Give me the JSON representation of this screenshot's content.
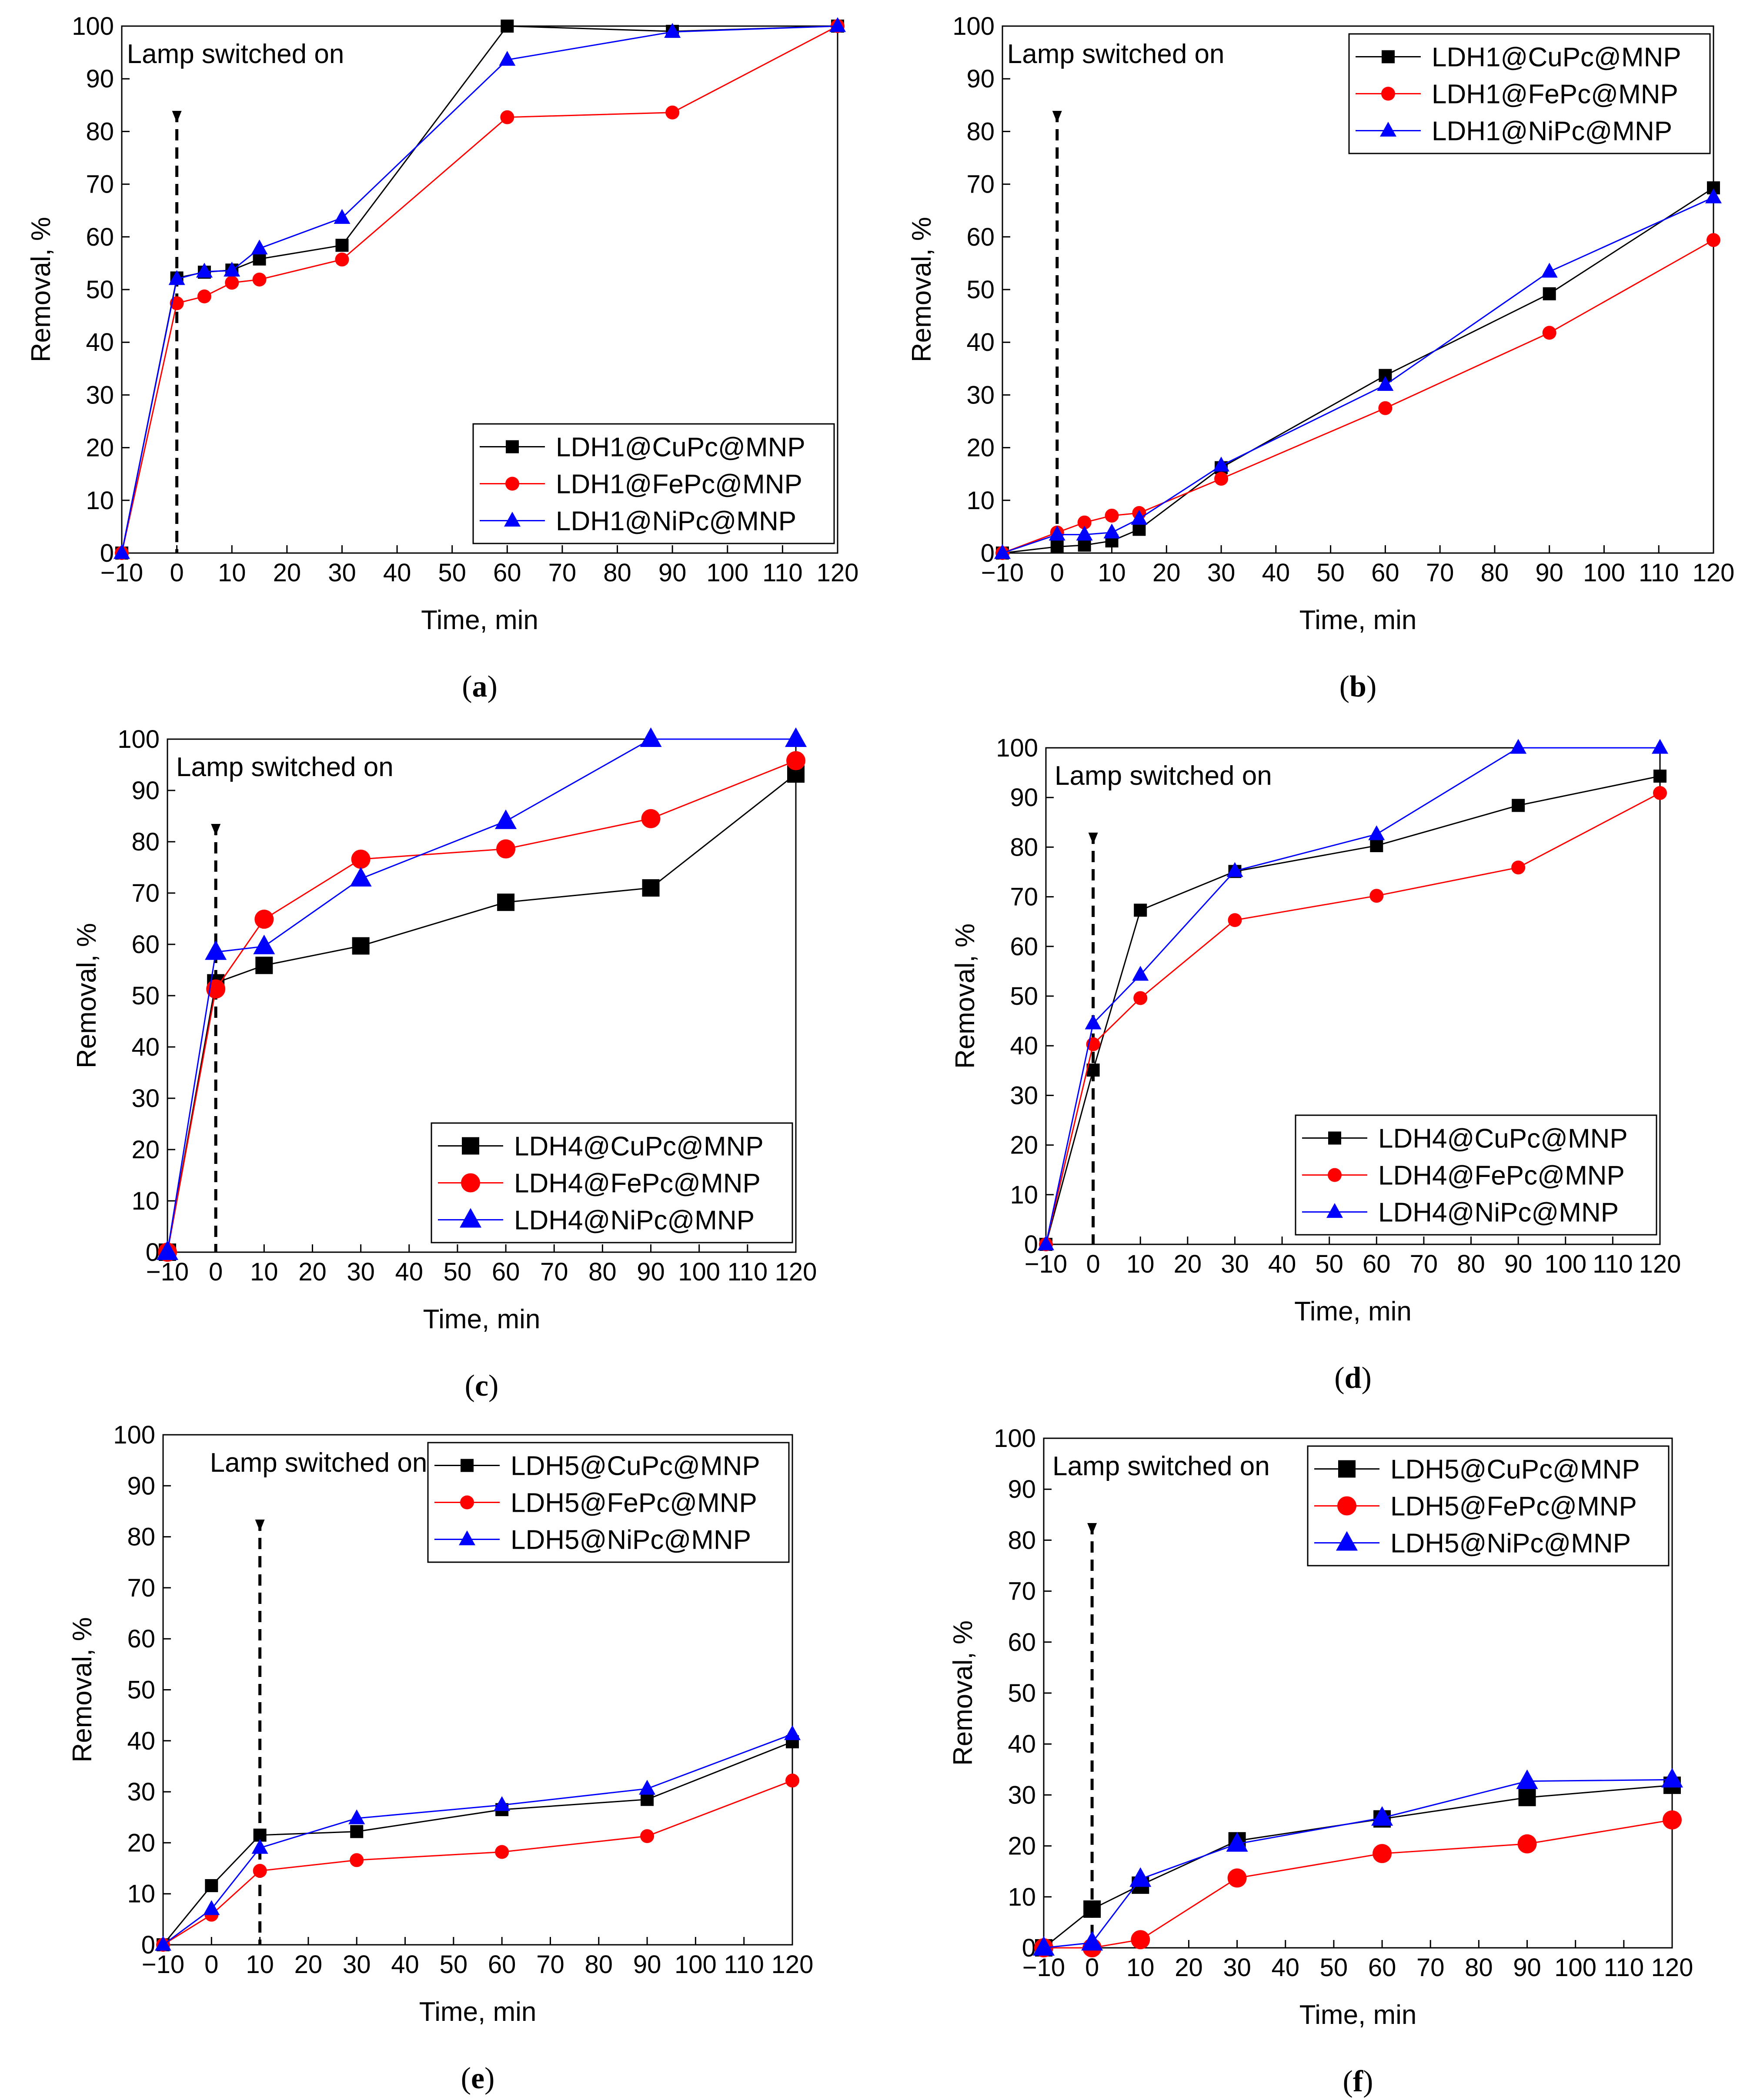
{
  "figure": {
    "colors": {
      "cu": "#000000",
      "fe": "#ff0000",
      "ni": "#0000ff"
    }
  },
  "chart_data": [
    {
      "type": "line",
      "panel_label": "(a)",
      "subplot_letter": "a",
      "xlabel": "Time, min",
      "ylabel": "Removal, %",
      "xlim": [
        -10,
        120
      ],
      "ylim": [
        0,
        100
      ],
      "xticks": [
        -10,
        0,
        10,
        20,
        30,
        40,
        50,
        60,
        70,
        80,
        90,
        100,
        110,
        120
      ],
      "yticks": [
        0,
        10,
        20,
        30,
        40,
        50,
        60,
        70,
        80,
        90,
        100
      ],
      "lamp": {
        "label": "Lamp switched on",
        "x": 0,
        "style": "dash",
        "label_pos": "top-left"
      },
      "legend": {
        "position": "bottom-right"
      },
      "marker_size": "small",
      "series": [
        {
          "name": "LDH1@CuPc@MNP",
          "marker": "square",
          "color": "#000000",
          "x": [
            -10,
            0,
            5,
            10,
            15,
            30,
            60,
            90,
            120
          ],
          "y": [
            0,
            52.2,
            53.3,
            53.7,
            55.8,
            58.4,
            100,
            99,
            100
          ]
        },
        {
          "name": "LDH1@FePc@MNP",
          "marker": "circle",
          "color": "#ff0000",
          "x": [
            -10,
            0,
            5,
            10,
            15,
            30,
            60,
            90,
            120
          ],
          "y": [
            0,
            47.4,
            48.7,
            51.3,
            51.9,
            55.7,
            82.7,
            83.6,
            100
          ]
        },
        {
          "name": "LDH1@NiPc@MNP",
          "marker": "triangle",
          "color": "#0000ff",
          "x": [
            -10,
            0,
            5,
            10,
            15,
            30,
            60,
            90,
            120
          ],
          "y": [
            0,
            52,
            53.4,
            53.6,
            57.8,
            63.6,
            93.6,
            98.9,
            100
          ]
        }
      ]
    },
    {
      "type": "line",
      "panel_label": "(b)",
      "subplot_letter": "b",
      "xlabel": "Time, min",
      "ylabel": "Removal, %",
      "xlim": [
        -10,
        120
      ],
      "ylim": [
        0,
        100
      ],
      "xticks": [
        -10,
        0,
        10,
        20,
        30,
        40,
        50,
        60,
        70,
        80,
        90,
        100,
        110,
        120
      ],
      "yticks": [
        0,
        10,
        20,
        30,
        40,
        50,
        60,
        70,
        80,
        90,
        100
      ],
      "lamp": {
        "label": "Lamp switched on",
        "x": 0,
        "style": "dash",
        "label_pos": "top-left"
      },
      "legend": {
        "position": "top-right"
      },
      "marker_size": "small",
      "series": [
        {
          "name": "LDH1@CuPc@MNP",
          "marker": "square",
          "color": "#000000",
          "x": [
            -10,
            0,
            5,
            10,
            15,
            30,
            60,
            90,
            120
          ],
          "y": [
            0,
            1.2,
            1.5,
            2.3,
            4.5,
            16.2,
            33.7,
            49.2,
            69.3
          ]
        },
        {
          "name": "LDH1@FePc@MNP",
          "marker": "circle",
          "color": "#ff0000",
          "x": [
            -10,
            0,
            5,
            10,
            15,
            30,
            60,
            90,
            120
          ],
          "y": [
            0,
            3.9,
            5.8,
            7.1,
            7.6,
            14.1,
            27.5,
            41.8,
            59.4
          ]
        },
        {
          "name": "LDH1@NiPc@MNP",
          "marker": "triangle",
          "color": "#0000ff",
          "x": [
            -10,
            0,
            5,
            10,
            15,
            30,
            60,
            90,
            120
          ],
          "y": [
            0,
            3.5,
            3.5,
            3.9,
            6.5,
            16.6,
            31.9,
            53.4,
            67.5
          ]
        }
      ]
    },
    {
      "type": "line",
      "panel_label": "(c)",
      "subplot_letter": "c",
      "xlabel": "Time, min",
      "ylabel": "Removal, %",
      "xlim": [
        -10,
        120
      ],
      "ylim": [
        0,
        100
      ],
      "xticks": [
        -10,
        0,
        10,
        20,
        30,
        40,
        50,
        60,
        70,
        80,
        90,
        100,
        110,
        120
      ],
      "yticks": [
        0,
        10,
        20,
        30,
        40,
        50,
        60,
        70,
        80,
        90,
        100
      ],
      "lamp": {
        "label": "Lamp switched on",
        "x": 0,
        "style": "dash",
        "label_pos": "top-left"
      },
      "legend": {
        "position": "bottom-right"
      },
      "marker_size": "large",
      "series": [
        {
          "name": "LDH4@CuPc@MNP",
          "marker": "square",
          "color": "#000000",
          "x": [
            -10,
            0,
            10,
            30,
            60,
            90,
            120
          ],
          "y": [
            0,
            52.5,
            55.9,
            59.7,
            68.2,
            71,
            93.2
          ]
        },
        {
          "name": "LDH4@FePc@MNP",
          "marker": "circle",
          "color": "#ff0000",
          "x": [
            -10,
            0,
            10,
            30,
            60,
            90,
            120
          ],
          "y": [
            0,
            51.3,
            64.9,
            76.6,
            78.6,
            84.5,
            95.8
          ]
        },
        {
          "name": "LDH4@NiPc@MNP",
          "marker": "triangle",
          "color": "#0000ff",
          "x": [
            -10,
            0,
            10,
            30,
            60,
            90,
            120
          ],
          "y": [
            0,
            58.5,
            59.6,
            72.8,
            84,
            100,
            100
          ]
        }
      ]
    },
    {
      "type": "line",
      "panel_label": "(d)",
      "subplot_letter": "d",
      "xlabel": "Time, min",
      "ylabel": "Removal, %",
      "xlim": [
        -10,
        120
      ],
      "ylim": [
        0,
        100
      ],
      "xticks": [
        -10,
        0,
        10,
        20,
        30,
        40,
        50,
        60,
        70,
        80,
        90,
        100,
        110,
        120
      ],
      "yticks": [
        0,
        10,
        20,
        30,
        40,
        50,
        60,
        70,
        80,
        90,
        100
      ],
      "lamp": {
        "label": "Lamp switched on",
        "x": 0,
        "style": "dash",
        "label_pos": "top-left"
      },
      "legend": {
        "position": "bottom-right"
      },
      "marker_size": "small",
      "series": [
        {
          "name": "LDH4@CuPc@MNP",
          "marker": "square",
          "color": "#000000",
          "x": [
            -10,
            0,
            10,
            30,
            60,
            90,
            120
          ],
          "y": [
            0,
            35.1,
            67.3,
            75.1,
            80.3,
            88.4,
            94.3
          ]
        },
        {
          "name": "LDH4@FePc@MNP",
          "marker": "circle",
          "color": "#ff0000",
          "x": [
            -10,
            0,
            10,
            30,
            60,
            90,
            120
          ],
          "y": [
            0,
            40.3,
            49.6,
            65.3,
            70.2,
            75.9,
            90.9
          ]
        },
        {
          "name": "LDH4@NiPc@MNP",
          "marker": "triangle",
          "color": "#0000ff",
          "x": [
            -10,
            0,
            10,
            30,
            60,
            90,
            120
          ],
          "y": [
            0,
            44.5,
            54.3,
            75.2,
            82.6,
            100,
            100
          ]
        }
      ]
    },
    {
      "type": "line",
      "panel_label": "(e)",
      "subplot_letter": "e",
      "xlabel": "Time, min",
      "ylabel": "Removal, %",
      "xlim": [
        -10,
        120
      ],
      "ylim": [
        0,
        100
      ],
      "xticks": [
        -10,
        0,
        10,
        20,
        30,
        40,
        50,
        60,
        70,
        80,
        90,
        100,
        110,
        120
      ],
      "yticks": [
        0,
        10,
        20,
        30,
        40,
        50,
        60,
        70,
        80,
        90,
        100
      ],
      "lamp": {
        "label": "Lamp switched on",
        "x": 10,
        "style": "dash",
        "label_pos": "top-left"
      },
      "legend": {
        "position": "top-right"
      },
      "marker_size": "small",
      "series": [
        {
          "name": "LDH5@CuPc@MNP",
          "marker": "square",
          "color": "#000000",
          "x": [
            -10,
            0,
            10,
            30,
            60,
            90,
            120
          ],
          "y": [
            0,
            11.6,
            21.5,
            22.2,
            26.5,
            28.5,
            39.8
          ]
        },
        {
          "name": "LDH5@FePc@MNP",
          "marker": "circle",
          "color": "#ff0000",
          "x": [
            -10,
            0,
            10,
            30,
            60,
            90,
            120
          ],
          "y": [
            0,
            5.9,
            14.5,
            16.6,
            18.2,
            21.3,
            32.2
          ]
        },
        {
          "name": "LDH5@NiPc@MNP",
          "marker": "triangle",
          "color": "#0000ff",
          "x": [
            -10,
            0,
            10,
            30,
            60,
            90,
            120
          ],
          "y": [
            0,
            7,
            19,
            24.8,
            27.4,
            30.6,
            41.3
          ]
        }
      ]
    },
    {
      "type": "line",
      "panel_label": "(f)",
      "subplot_letter": "f",
      "xlabel": "Time, min",
      "ylabel": "Removal, %",
      "xlim": [
        -10,
        120
      ],
      "ylim": [
        0,
        100
      ],
      "xticks": [
        -10,
        0,
        10,
        20,
        30,
        40,
        50,
        60,
        70,
        80,
        90,
        100,
        110,
        120
      ],
      "yticks": [
        0,
        10,
        20,
        30,
        40,
        50,
        60,
        70,
        80,
        90,
        100
      ],
      "lamp": {
        "label": "Lamp switched on",
        "x": 0,
        "style": "dash",
        "label_pos": "top-left"
      },
      "legend": {
        "position": "top-right"
      },
      "marker_size": "large",
      "series": [
        {
          "name": "LDH5@CuPc@MNP",
          "marker": "square",
          "color": "#000000",
          "x": [
            -10,
            0,
            10,
            30,
            60,
            90,
            120
          ],
          "y": [
            0,
            7.6,
            12.3,
            21,
            25.3,
            29.5,
            31.9
          ]
        },
        {
          "name": "LDH5@FePc@MNP",
          "marker": "circle",
          "color": "#ff0000",
          "x": [
            -10,
            0,
            10,
            30,
            60,
            90,
            120
          ],
          "y": [
            0,
            0,
            1.6,
            13.7,
            18.5,
            20.4,
            25.1
          ]
        },
        {
          "name": "LDH5@NiPc@MNP",
          "marker": "triangle",
          "color": "#0000ff",
          "x": [
            -10,
            0,
            10,
            30,
            60,
            90,
            120
          ],
          "y": [
            0,
            1,
            13.5,
            20.4,
            25.5,
            32.7,
            33
          ]
        }
      ]
    }
  ]
}
